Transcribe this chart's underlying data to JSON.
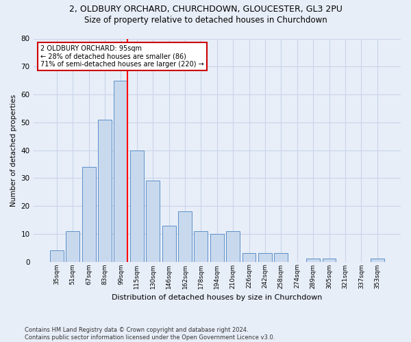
{
  "title_line1": "2, OLDBURY ORCHARD, CHURCHDOWN, GLOUCESTER, GL3 2PU",
  "title_line2": "Size of property relative to detached houses in Churchdown",
  "xlabel": "Distribution of detached houses by size in Churchdown",
  "ylabel": "Number of detached properties",
  "categories": [
    "35sqm",
    "51sqm",
    "67sqm",
    "83sqm",
    "99sqm",
    "115sqm",
    "130sqm",
    "146sqm",
    "162sqm",
    "178sqm",
    "194sqm",
    "210sqm",
    "226sqm",
    "242sqm",
    "258sqm",
    "274sqm",
    "289sqm",
    "305sqm",
    "321sqm",
    "337sqm",
    "353sqm"
  ],
  "values": [
    4,
    11,
    34,
    51,
    65,
    40,
    29,
    13,
    18,
    11,
    10,
    11,
    3,
    3,
    3,
    0,
    1,
    1,
    0,
    0,
    1
  ],
  "bar_color": "#c9d9ed",
  "bar_edge_color": "#5b8fc9",
  "red_line_index": 4,
  "annotation_text_line1": "2 OLDBURY ORCHARD: 95sqm",
  "annotation_text_line2": "← 28% of detached houses are smaller (86)",
  "annotation_text_line3": "71% of semi-detached houses are larger (220) →",
  "annotation_box_color": "#ffffff",
  "annotation_box_edge": "#cc0000",
  "ylim": [
    0,
    80
  ],
  "yticks": [
    0,
    10,
    20,
    30,
    40,
    50,
    60,
    70,
    80
  ],
  "grid_color": "#c8d4e8",
  "background_color": "#e8eef8",
  "title_fontsize": 9,
  "subtitle_fontsize": 8.5,
  "footnote": "Contains HM Land Registry data © Crown copyright and database right 2024.\nContains public sector information licensed under the Open Government Licence v3.0."
}
